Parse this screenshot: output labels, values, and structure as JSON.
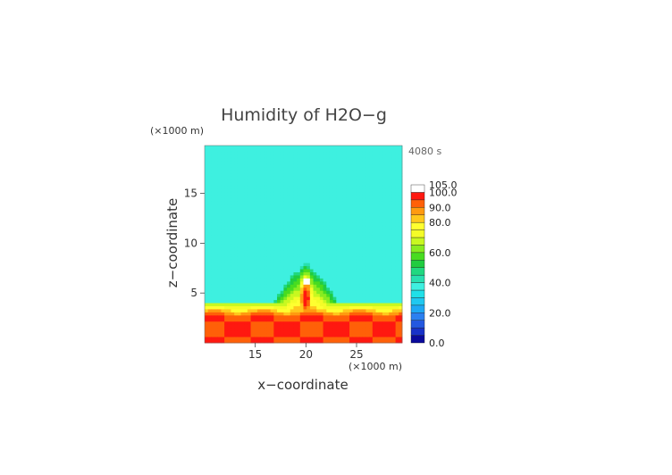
{
  "chart_data": {
    "type": "heatmap",
    "title": "Humidity of H2O−g",
    "time_label": "4080 s",
    "xlabel": "x−coordinate",
    "ylabel": "z−coordinate",
    "x_unit": "(×1000 m)",
    "y_unit": "(×1000 m)",
    "xlim": [
      10,
      29.5
    ],
    "ylim": [
      0,
      19.8
    ],
    "x_ticks": [
      15,
      20,
      25
    ],
    "y_ticks": [
      5,
      10,
      15
    ],
    "colorbar": {
      "min": 0,
      "max": 105,
      "labels": [
        "105.0",
        "100.0",
        "90.0",
        "80.0",
        "60.0",
        "40.0",
        "20.0",
        "0.0"
      ],
      "levels": [
        {
          "lo": 0,
          "hi": 5,
          "color": "#0a0a9c"
        },
        {
          "lo": 5,
          "hi": 10,
          "color": "#1832c8"
        },
        {
          "lo": 10,
          "hi": 15,
          "color": "#2458e0"
        },
        {
          "lo": 15,
          "hi": 20,
          "color": "#2c80f0"
        },
        {
          "lo": 20,
          "hi": 25,
          "color": "#1ea8f4"
        },
        {
          "lo": 25,
          "hi": 30,
          "color": "#20c8f0"
        },
        {
          "lo": 30,
          "hi": 35,
          "color": "#20e0e8"
        },
        {
          "lo": 35,
          "hi": 40,
          "color": "#3ef0e0"
        },
        {
          "lo": 40,
          "hi": 45,
          "color": "#28e0b0"
        },
        {
          "lo": 45,
          "hi": 50,
          "color": "#20d880"
        },
        {
          "lo": 50,
          "hi": 55,
          "color": "#20cc40"
        },
        {
          "lo": 55,
          "hi": 60,
          "color": "#48dc20"
        },
        {
          "lo": 60,
          "hi": 65,
          "color": "#88ec20"
        },
        {
          "lo": 65,
          "hi": 70,
          "color": "#c8f820"
        },
        {
          "lo": 70,
          "hi": 75,
          "color": "#f4fc28"
        },
        {
          "lo": 75,
          "hi": 80,
          "color": "#ffff30"
        },
        {
          "lo": 80,
          "hi": 85,
          "color": "#ffc81c"
        },
        {
          "lo": 85,
          "hi": 90,
          "color": "#ff9a10"
        },
        {
          "lo": 90,
          "hi": 95,
          "color": "#ff6008"
        },
        {
          "lo": 95,
          "hi": 100,
          "color": "#ff1810"
        },
        {
          "lo": 100,
          "hi": 105,
          "color": "#ffffff"
        }
      ]
    },
    "field_description_values": {
      "background": 38,
      "moist_layer_top_z": 3.5,
      "core_max": 100
    }
  }
}
